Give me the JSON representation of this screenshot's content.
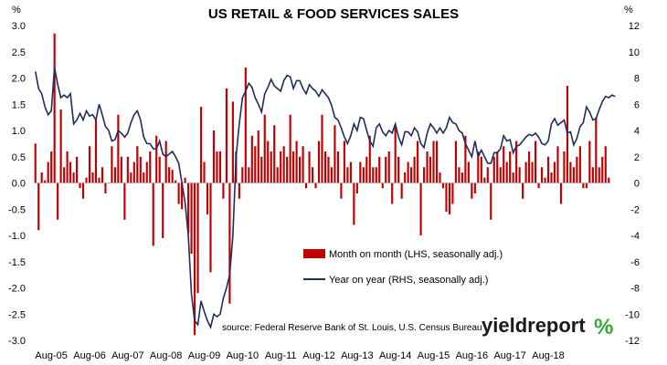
{
  "chart_data": {
    "type": "bar+line",
    "title": "US RETAIL & FOOD SERVICES SALES",
    "left_axis": {
      "unit_label": "%",
      "ylim": [
        -3.0,
        3.0
      ],
      "ticks": [
        "-3.0",
        "-2.5",
        "-2.0",
        "-1.5",
        "-1.0",
        "-0.5",
        "0.0",
        "0.5",
        "1.0",
        "1.5",
        "2.0",
        "2.5",
        "3.0"
      ]
    },
    "right_axis": {
      "unit_label": "%",
      "ylim": [
        -12,
        12
      ],
      "ticks": [
        "-12",
        "-10",
        "-8",
        "-6",
        "-4",
        "-2",
        "0",
        "2",
        "4",
        "6",
        "8",
        "10",
        "12"
      ]
    },
    "x_ticks": [
      "Aug-05",
      "Aug-06",
      "Aug-07",
      "Aug-08",
      "Aug-09",
      "Aug-10",
      "Aug-11",
      "Aug-12",
      "Aug-13",
      "Aug-14",
      "Aug-15",
      "Aug-16",
      "Aug-17",
      "Aug-18"
    ],
    "grid": false,
    "legend_position": "lower-center",
    "colors": {
      "bars": "#c00000",
      "line": "#1f2d5c"
    },
    "series": [
      {
        "name": "Month on month (LHS, seasonally adj.)",
        "type": "bar",
        "axis": "left",
        "start": "2005-03",
        "values": [
          0.75,
          -0.9,
          0.2,
          0.05,
          0.4,
          0.6,
          2.85,
          -0.7,
          1.4,
          0.3,
          0.6,
          0.4,
          0.2,
          0.5,
          -0.1,
          -0.3,
          0.1,
          0.7,
          0.2,
          1.2,
          0.1,
          0.3,
          -0.2,
          0.0,
          0.7,
          0.3,
          1.3,
          0.5,
          -0.7,
          0.5,
          0.2,
          0.4,
          0.7,
          0.5,
          0.2,
          0.4,
          0.6,
          -1.2,
          0.9,
          0.5,
          -1.05,
          0.8,
          0.3,
          0.25,
          0.05,
          -0.4,
          -0.5,
          0.1,
          -0.95,
          -1.35,
          -2.9,
          -2.1,
          1.45,
          0.4,
          -0.6,
          -1.7,
          1.0,
          0.6,
          0.6,
          -0.3,
          1.8,
          -2.3,
          1.55,
          0.6,
          -0.3,
          0.3,
          2.2,
          0.3,
          0.9,
          0.7,
          1.0,
          0.5,
          1.3,
          0.8,
          0.6,
          1.1,
          0.3,
          0.6,
          0.7,
          0.5,
          1.3,
          0.6,
          0.8,
          0.5,
          0.7,
          -0.1,
          0.6,
          0.3,
          -0.1,
          0.8,
          1.3,
          0.6,
          0.5,
          0.3,
          1.1,
          0.6,
          -0.3,
          0.8,
          0.3,
          0.4,
          -0.8,
          -0.2,
          0.4,
          0.3,
          0.5,
          0.9,
          0.3,
          0.3,
          0.5,
          -0.1,
          0.5,
          0.6,
          -0.4,
          1.1,
          0.5,
          -0.3,
          0.2,
          0.4,
          0.3,
          0.5,
          0.8,
          -1.0,
          0.3,
          0.6,
          0.5,
          0.8,
          0.8,
          0.2,
          -0.1,
          -0.55,
          -0.6,
          -0.4,
          0.8,
          0.3,
          0.2,
          0.9,
          0.4,
          -0.3,
          -0.2,
          0.6,
          0.5,
          0.1,
          0.3,
          -0.7,
          0.5,
          0.6,
          0.3,
          0.7,
          0.4,
          0.6,
          0.2,
          0.8,
          0.3,
          -0.3,
          0.4,
          0.6,
          0.4,
          0.8,
          -0.1,
          0.3,
          0.1,
          0.5,
          0.2,
          0.4,
          0.7,
          -0.4,
          0.6,
          1.85,
          0.4,
          0.3,
          0.5,
          0.7,
          -0.1,
          -0.1,
          0.8,
          0.3,
          1.25,
          0.3,
          0.5,
          0.7,
          0.1
        ]
      },
      {
        "name": "Year on year (RHS, seasonally adj.)",
        "type": "line",
        "axis": "right",
        "start": "2005-03",
        "values": [
          8.5,
          7.2,
          6.8,
          5.8,
          5.2,
          5.5,
          8.8,
          7.5,
          6.5,
          6.7,
          6.5,
          6.8,
          4.5,
          4.8,
          5.3,
          4.8,
          5.5,
          5.1,
          5.2,
          4.8,
          6.0,
          5.2,
          4.3,
          4.0,
          3.2,
          3.3,
          4.0,
          3.8,
          3.5,
          3.8,
          4.6,
          5.2,
          5.5,
          4.8,
          3.5,
          3.0,
          3.0,
          2.6,
          2.6,
          3.2,
          2.2,
          2.0,
          2.2,
          2.4,
          2.0,
          1.5,
          0.0,
          -1.5,
          -4.0,
          -8.5,
          -10.5,
          -10.8,
          -9.0,
          -9.8,
          -10.5,
          -11.0,
          -10.0,
          -10.2,
          -10.0,
          -8.8,
          -8.0,
          -7.0,
          -4.0,
          2.0,
          4.5,
          6.5,
          7.0,
          7.6,
          7.3,
          6.5,
          6.0,
          5.4,
          6.8,
          7.3,
          7.9,
          7.4,
          7.2,
          7.0,
          7.8,
          8.2,
          8.1,
          7.2,
          7.8,
          7.8,
          7.2,
          6.8,
          7.5,
          7.2,
          7.0,
          6.6,
          7.1,
          6.8,
          6.5,
          5.9,
          5.0,
          4.8,
          4.2,
          3.5,
          3.0,
          3.6,
          4.5,
          4.0,
          5.0,
          4.9,
          4.0,
          3.2,
          2.8,
          4.2,
          4.5,
          3.9,
          3.6,
          4.0,
          3.8,
          4.5,
          3.5,
          2.9,
          3.9,
          3.9,
          3.6,
          4.2,
          3.9,
          3.0,
          2.7,
          3.8,
          4.5,
          4.2,
          3.8,
          4.2,
          3.8,
          4.2,
          5.0,
          4.6,
          4.5,
          4.0,
          3.8,
          3.0,
          2.5,
          2.0,
          3.2,
          2.0,
          2.5,
          2.0,
          1.5,
          1.5,
          2.3,
          2.3,
          2.6,
          3.6,
          3.2,
          3.3,
          2.3,
          2.8,
          2.9,
          3.2,
          3.5,
          3.7,
          3.6,
          3.8,
          3.5,
          3.0,
          2.9,
          3.2,
          4.5,
          4.9,
          4.4,
          4.6,
          4.8,
          3.8,
          3.9,
          2.9,
          3.4,
          4.3,
          4.6,
          5.8,
          5.4,
          4.8,
          4.9,
          5.6,
          6.2,
          6.6,
          6.5,
          6.7,
          6.6
        ]
      }
    ]
  },
  "legend": {
    "bar_label": "Month on month (LHS, seasonally adj.)",
    "line_label": "Year on year (RHS, seasonally adj.)"
  },
  "source_text": "source: Federal Reserve Bank of St. Louis, U.S. Census Bureau",
  "logo": {
    "text": "yieldreport",
    "symbol": "%"
  }
}
